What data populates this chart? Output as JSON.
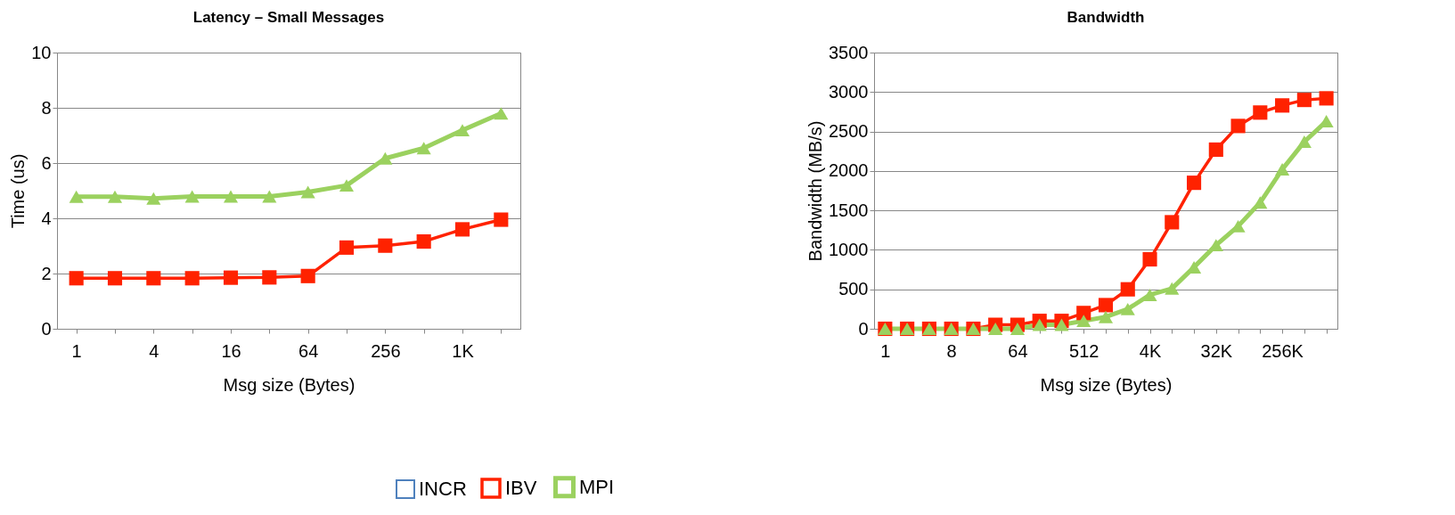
{
  "chart_data": [
    {
      "type": "line",
      "title": "Latency – Small Messages",
      "xlabel": "Msg size (Bytes)",
      "ylabel": "Time (us)",
      "categories": [
        "1",
        null,
        "4",
        null,
        "16",
        null,
        "64",
        null,
        "256",
        null,
        "1K",
        null
      ],
      "ylim": [
        0,
        10
      ],
      "yticks": [
        0,
        2,
        4,
        6,
        8,
        10
      ],
      "grid": "y",
      "legend": "bottom",
      "series": [
        {
          "name": "INCR",
          "color": "#4f81bd",
          "marker": "none",
          "values": [
            null,
            null,
            null,
            null,
            null,
            null,
            null,
            null,
            null,
            null,
            null,
            null
          ]
        },
        {
          "name": "IBV",
          "color": "#ff2200",
          "marker": "square",
          "values": [
            1.83,
            1.83,
            1.83,
            1.83,
            1.85,
            1.86,
            1.91,
            2.94,
            3.01,
            3.16,
            3.6,
            3.95
          ]
        },
        {
          "name": "MPI",
          "color": "#9bd15f",
          "marker": "triangle",
          "values": [
            4.78,
            4.78,
            4.72,
            4.79,
            4.79,
            4.79,
            4.95,
            5.19,
            6.17,
            6.54,
            7.19,
            7.8
          ]
        }
      ]
    },
    {
      "type": "line",
      "title": "Bandwidth",
      "xlabel": "Msg size (Bytes)",
      "ylabel": "Bandwidth (MB/s)",
      "categories": [
        "1",
        null,
        null,
        "8",
        null,
        null,
        "64",
        null,
        null,
        "512",
        null,
        null,
        "4K",
        null,
        null,
        "32K",
        null,
        null,
        "256K",
        null,
        null
      ],
      "ylim": [
        0,
        3500
      ],
      "yticks": [
        0,
        500,
        1000,
        1500,
        2000,
        2500,
        3000,
        3500
      ],
      "grid": "y",
      "legend": "bottom",
      "series": [
        {
          "name": "IBV",
          "color": "#ff2200",
          "marker": "square",
          "values": [
            0,
            0,
            0,
            0,
            0,
            50,
            50,
            100,
            100,
            200,
            300,
            500,
            880,
            1350,
            1850,
            2270,
            2570,
            2740,
            2830,
            2900,
            2920
          ]
        },
        {
          "name": "MPI",
          "color": "#9bd15f",
          "marker": "triangle",
          "values": [
            0,
            0,
            0,
            0,
            0,
            0,
            0,
            50,
            50,
            100,
            150,
            250,
            430,
            510,
            780,
            1060,
            1300,
            1600,
            2020,
            2370,
            2630
          ]
        }
      ]
    }
  ]
}
